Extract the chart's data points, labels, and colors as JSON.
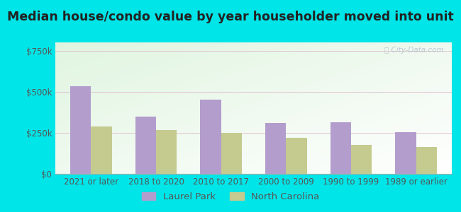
{
  "title": "Median house/condo value by year householder moved into unit",
  "categories": [
    "2021 or later",
    "2018 to 2020",
    "2010 to 2017",
    "2000 to 2009",
    "1990 to 1999",
    "1989 or earlier"
  ],
  "laurel_park": [
    535000,
    350000,
    450000,
    310000,
    315000,
    255000
  ],
  "north_carolina": [
    290000,
    265000,
    248000,
    218000,
    178000,
    163000
  ],
  "bar_color_laurel": "#b39dcc",
  "bar_color_nc": "#c5ca8e",
  "yticks": [
    0,
    250000,
    500000,
    750000
  ],
  "ytick_labels": [
    "$0",
    "$250k",
    "$500k",
    "$750k"
  ],
  "ylim": [
    0,
    800000
  ],
  "background_outer": "#00e5e8",
  "legend_laurel": "Laurel Park",
  "legend_nc": "North Carolina",
  "watermark": "Ⓣ City-Data.com",
  "title_fontsize": 12.5,
  "axis_fontsize": 8.5,
  "legend_fontsize": 9.5
}
